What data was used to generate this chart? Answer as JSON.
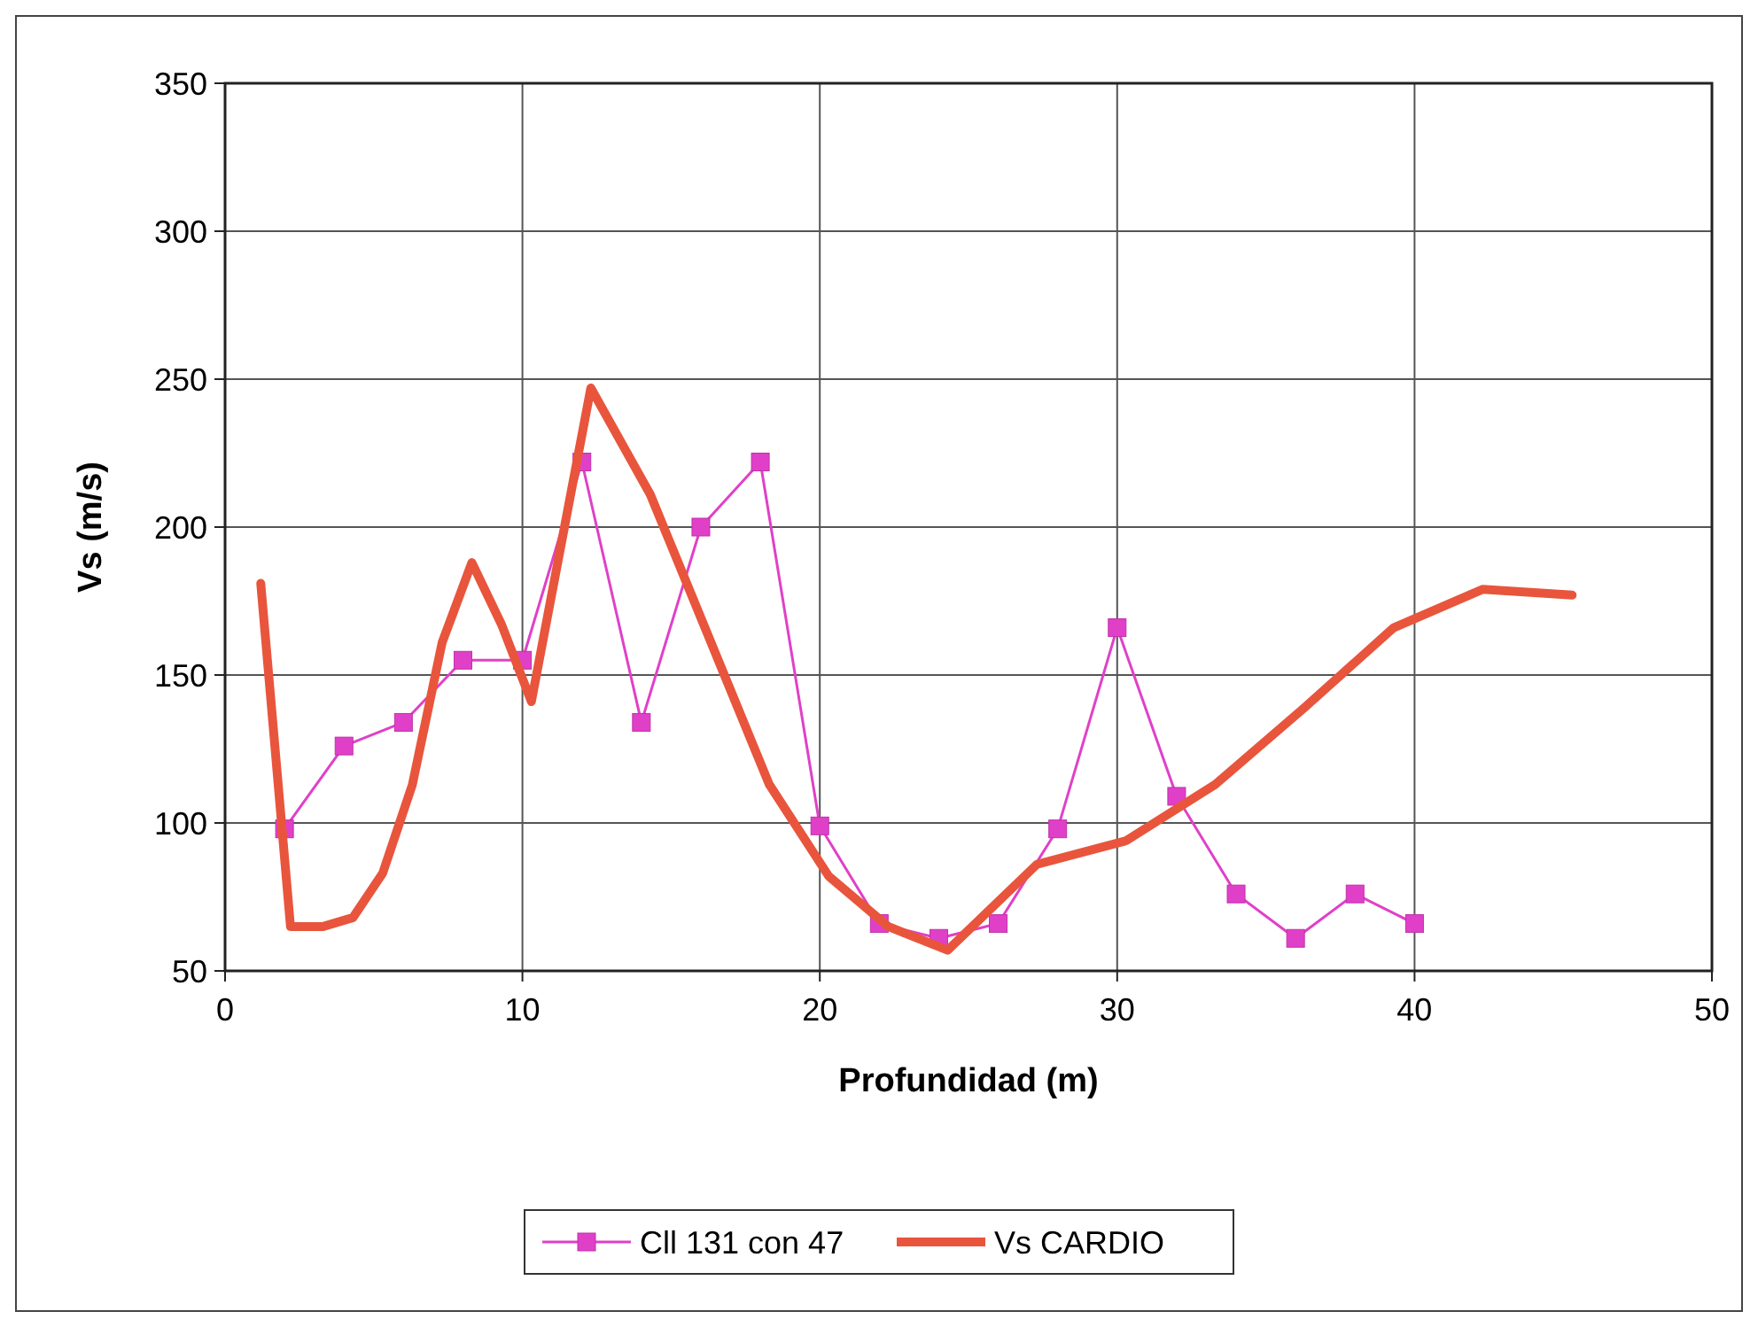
{
  "chart_data": {
    "type": "line",
    "xlabel": "Profundidad (m)",
    "ylabel": "Vs (m/s)",
    "xlim": [
      0,
      50
    ],
    "xticks": [
      0,
      10,
      20,
      30,
      40,
      50
    ],
    "ylim": [
      50,
      350
    ],
    "yticks": [
      50,
      100,
      150,
      200,
      250,
      300,
      350
    ],
    "grid": true,
    "legend": "bottom",
    "series": [
      {
        "name": "Cll 131 con 47",
        "color": "#e040c8",
        "marker": "square",
        "x": [
          2,
          4,
          6,
          8,
          10,
          12,
          14,
          16,
          18,
          20,
          22,
          24,
          26,
          28,
          30,
          32,
          34,
          36,
          38,
          40
        ],
        "values": [
          98,
          126,
          134,
          155,
          155,
          222,
          134,
          200,
          222,
          99,
          66,
          61,
          66,
          98,
          166,
          109,
          76,
          61,
          76,
          66
        ]
      },
      {
        "name": "Vs CARDIO",
        "color": "#e8553c",
        "marker": "none",
        "x": [
          1.2,
          2.2,
          3.3,
          4.3,
          5.3,
          6.3,
          7.3,
          8.3,
          9.3,
          10.3,
          12.3,
          14.3,
          16.3,
          18.3,
          20.3,
          22.3,
          24.3,
          27.3,
          30.3,
          33.3,
          36.3,
          39.3,
          42.3,
          45.3
        ],
        "values": [
          181,
          65,
          65,
          68,
          83,
          113,
          161,
          188,
          167,
          141,
          247,
          211,
          162,
          113,
          82,
          65,
          57,
          86,
          94,
          113,
          139,
          166,
          179,
          177
        ]
      }
    ]
  }
}
